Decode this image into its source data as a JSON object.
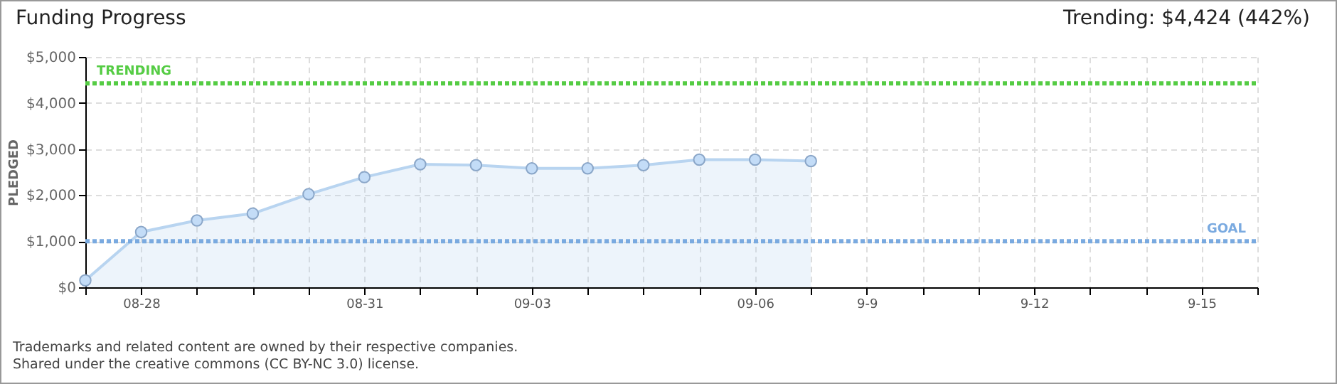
{
  "chart_data": {
    "type": "area",
    "title": "Funding Progress",
    "ylabel": "PLEDGED",
    "categories": [
      null,
      "08-28",
      null,
      null,
      null,
      "08-31",
      null,
      null,
      "09-03",
      null,
      null,
      null,
      "09-06",
      null,
      "9-9",
      null,
      null,
      "9-12",
      null,
      null,
      "9-15",
      null
    ],
    "series": [
      {
        "color": "#b8d4f0",
        "values": [
          150,
          1200,
          1450,
          1600,
          2020,
          2390,
          2670,
          2650,
          2580,
          2580,
          2650,
          2770,
          2770,
          2740,
          null,
          null,
          null,
          null,
          null,
          null,
          null,
          null
        ]
      }
    ],
    "ylim": [
      0,
      5000
    ],
    "yticks": [
      {
        "value": 0,
        "label": "$0"
      },
      {
        "value": 1000,
        "label": "$1,000"
      },
      {
        "value": 2000,
        "label": "$2,000"
      },
      {
        "value": 3000,
        "label": "$3,000"
      },
      {
        "value": 4000,
        "label": "$4,000"
      },
      {
        "value": 5000,
        "label": "$5,000"
      }
    ],
    "grid": true,
    "marker": "circle",
    "line_style": "solid",
    "ref_lines": [
      {
        "axis": "y",
        "value": 4424,
        "label": "TRENDING",
        "color": "#55cc44",
        "line_style": "dotted"
      },
      {
        "axis": "y",
        "value": 1000,
        "label": "GOAL",
        "color": "#7aaae0",
        "line_style": "dotted"
      }
    ],
    "annotations": [
      "Trending: $4,424 (442%)",
      "Trademarks and related content are owned by their respective companies.",
      "Shared under the creative commons (CC BY-NC 3.0) license."
    ]
  }
}
